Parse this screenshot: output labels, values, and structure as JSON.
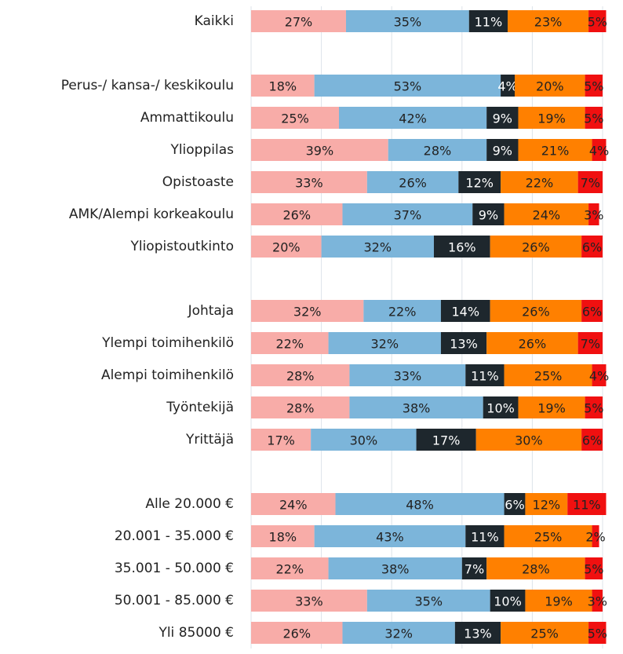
{
  "chart_data": {
    "type": "stacked-barh",
    "categories": [
      "Kaikki",
      null,
      "Perus-/ kansa-/ keskikoulu",
      "Ammattikoulu",
      "Ylioppilas",
      "Opistoaste",
      "AMK/Alempi korkeakoulu",
      "Yliopistoutkinto",
      null,
      "Johtaja",
      "Ylempi toimihenkilö",
      "Alempi toimihenkilö",
      "Työntekijä",
      "Yrittäjä",
      null,
      "Alle 20.000 €",
      "20.001 - 35.000 €",
      "35.001 - 50.000 €",
      "50.001 - 85.000 €",
      "Yli 85000 €"
    ],
    "series": [
      {
        "color": "#f8aca8",
        "values": [
          27,
          null,
          18,
          25,
          39,
          33,
          26,
          20,
          null,
          32,
          22,
          28,
          28,
          17,
          null,
          24,
          18,
          22,
          33,
          26
        ],
        "value_labels": [
          "27%",
          null,
          "18%",
          "25%",
          "39%",
          "33%",
          "26%",
          "20%",
          null,
          "32%",
          "22%",
          "28%",
          "28%",
          "17%",
          null,
          "24%",
          "18%",
          "22%",
          "33%",
          "26%"
        ]
      },
      {
        "color": "#7cb5da",
        "values": [
          35,
          null,
          53,
          42,
          28,
          26,
          37,
          32,
          null,
          22,
          32,
          33,
          38,
          30,
          null,
          48,
          43,
          38,
          35,
          32
        ],
        "value_labels": [
          "35%",
          null,
          "53%",
          "42%",
          "28%",
          "26%",
          "37%",
          "32%",
          null,
          "22%",
          "32%",
          "33%",
          "38%",
          "30%",
          null,
          "48%",
          "43%",
          "38%",
          "35%",
          "32%"
        ]
      },
      {
        "color": "#1e272d",
        "values": [
          11,
          null,
          4,
          9,
          9,
          12,
          9,
          16,
          null,
          14,
          13,
          11,
          10,
          17,
          null,
          6,
          11,
          7,
          10,
          13
        ],
        "value_labels": [
          "11%",
          null,
          "4%",
          "9%",
          "9%",
          "12%",
          "9%",
          "16%",
          null,
          "14%",
          "13%",
          "11%",
          "10%",
          "17%",
          null,
          "6%",
          "11%",
          "7%",
          "10%",
          "13%"
        ]
      },
      {
        "color": "#ff8000",
        "values": [
          23,
          null,
          20,
          19,
          21,
          22,
          24,
          26,
          null,
          26,
          26,
          25,
          19,
          30,
          null,
          12,
          25,
          28,
          19,
          25
        ],
        "value_labels": [
          "23%",
          null,
          "20%",
          "19%",
          "21%",
          "22%",
          "24%",
          "26%",
          null,
          "26%",
          "26%",
          "25%",
          "19%",
          "30%",
          null,
          "12%",
          "25%",
          "28%",
          "19%",
          "25%"
        ]
      },
      {
        "color": "#f01010",
        "values": [
          5,
          null,
          5,
          5,
          4,
          7,
          3,
          6,
          null,
          6,
          7,
          4,
          5,
          6,
          null,
          11,
          2,
          5,
          3,
          5
        ],
        "value_labels": [
          "5%",
          null,
          "5%",
          "5%",
          "4%",
          "7%",
          "3%",
          "6%",
          null,
          "6%",
          "7%",
          "4%",
          "5%",
          "6%",
          null,
          "11%",
          "2%",
          "5%",
          "3%",
          "5%"
        ]
      }
    ],
    "xlim": [
      0,
      100
    ],
    "xticks": [
      0,
      20,
      40,
      60,
      80,
      100
    ],
    "grid": true
  }
}
